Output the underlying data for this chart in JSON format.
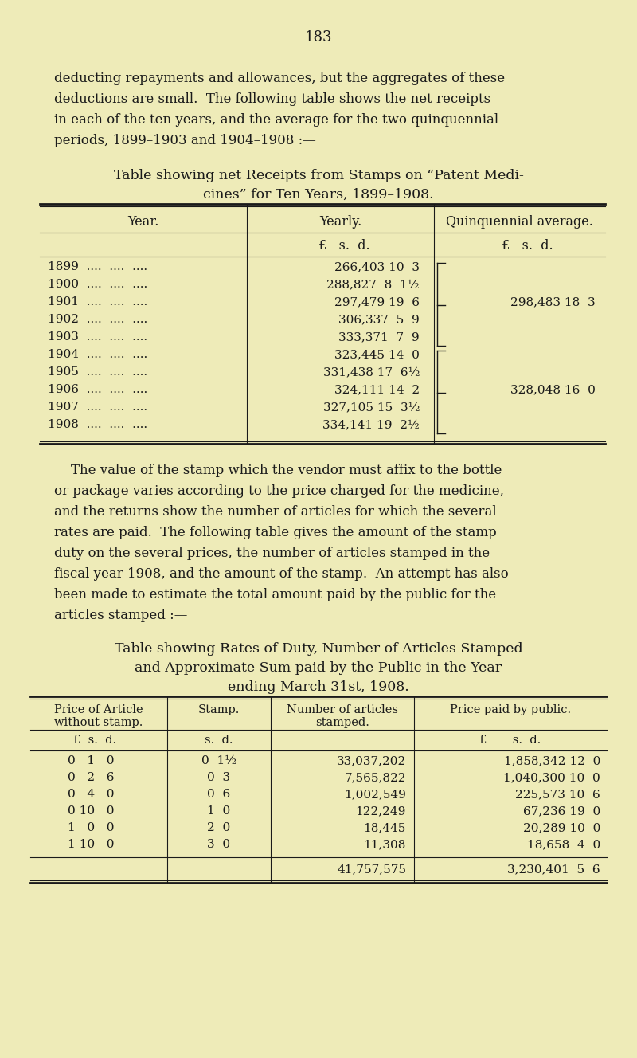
{
  "bg_color": "#eeebb8",
  "text_color": "#1a1a1a",
  "page_number": "183",
  "intro_text": [
    "deducting repayments and allowances, but the aggregates of these",
    "deductions are small.  The following table shows the net receipts",
    "in each of the ten years, and the average for the two quinquennial",
    "periods, 1899–1903 and 1904–1908 :—"
  ],
  "table1_title_line1": "Table showing net Receipts from Stamps on “Patent Medi-",
  "table1_title_line2": "cines” for Ten Years, 1899–1908.",
  "table1_header_year": "Year.",
  "table1_header_yearly": "Yearly.",
  "table1_header_quint": "Quinquennial average.",
  "table1_subheader_yearly": "£   s.  d.",
  "table1_subheader_quint": "£   s.  d.",
  "table1_rows": [
    {
      "year": "1899  ....  ....  ....",
      "yearly": "266,403 10  3",
      "bracket_group": 1,
      "quint": null
    },
    {
      "year": "1900  ....  ....  ....",
      "yearly": "288,827  8  1½",
      "bracket_group": 1,
      "quint": null
    },
    {
      "year": "1901  ....  ....  ....",
      "yearly": "297,479 19  6",
      "bracket_group": 1,
      "quint": "298,483 18  3"
    },
    {
      "year": "1902  ....  ....  ....",
      "yearly": "306,337  5  9",
      "bracket_group": 1,
      "quint": null
    },
    {
      "year": "1903  ....  ....  ....",
      "yearly": "333,371  7  9",
      "bracket_group": 1,
      "quint": null
    },
    {
      "year": "1904  ....  ....  ....",
      "yearly": "323,445 14  0",
      "bracket_group": 2,
      "quint": null
    },
    {
      "year": "1905  ....  ....  ....",
      "yearly": "331,438 17  6½",
      "bracket_group": 2,
      "quint": null
    },
    {
      "year": "1906  ....  ....  ....",
      "yearly": "324,111 14  2",
      "bracket_group": 2,
      "quint": "328,048 16  0"
    },
    {
      "year": "1907  ....  ....  ....",
      "yearly": "327,105 15  3½",
      "bracket_group": 2,
      "quint": null
    },
    {
      "year": "1908  ....  ....  ....",
      "yearly": "334,141 19  2½",
      "bracket_group": 2,
      "quint": null
    }
  ],
  "middle_text": [
    "    The value of the stamp which the vendor must affix to the bottle",
    "or package varies according to the price charged for the medicine,",
    "and the returns show the number of articles for which the several",
    "rates are paid.  The following table gives the amount of the stamp",
    "duty on the several prices, the number of articles stamped in the",
    "fiscal year 1908, and the amount of the stamp.  An attempt has also",
    "been made to estimate the total amount paid by the public for the",
    "articles stamped :—"
  ],
  "table2_title_line1": "Table showing Rates of Duty, Number of Articles Stamped",
  "table2_title_line2": "and Approximate Sum paid by the Public in the Year",
  "table2_title_line3": "ending March 31st, 1908.",
  "table2_header_price": "Price of Article\nwithout stamp.",
  "table2_header_stamp": "Stamp.",
  "table2_header_number": "Number of articles\nstamped.",
  "table2_header_public": "Price paid by public.",
  "table2_subheader_price": "£  s.  d.",
  "table2_subheader_stamp": "s.  d.",
  "table2_subheader_public": "£       s.  d.",
  "table2_rows": [
    {
      "price": "0   1   0",
      "stamp": "0  1½",
      "number": "33,037,202",
      "public": "1,858,342 12  0"
    },
    {
      "price": "0   2   6",
      "stamp": "0  3",
      "number": "7,565,822",
      "public": "1,040,300 10  0"
    },
    {
      "price": "0   4   0",
      "stamp": "0  6",
      "number": "1,002,549",
      "public": "225,573 10  6"
    },
    {
      "price": "0 10   0",
      "stamp": "1  0",
      "number": "122,249",
      "public": "67,236 19  0"
    },
    {
      "price": "1   0   0",
      "stamp": "2  0",
      "number": "18,445",
      "public": "20,289 10  0"
    },
    {
      "price": "1 10   0",
      "stamp": "3  0",
      "number": "11,308",
      "public": "18,658  4  0"
    }
  ],
  "table2_total_number": "41,757,575",
  "table2_total_public": "3,230,401  5  6"
}
